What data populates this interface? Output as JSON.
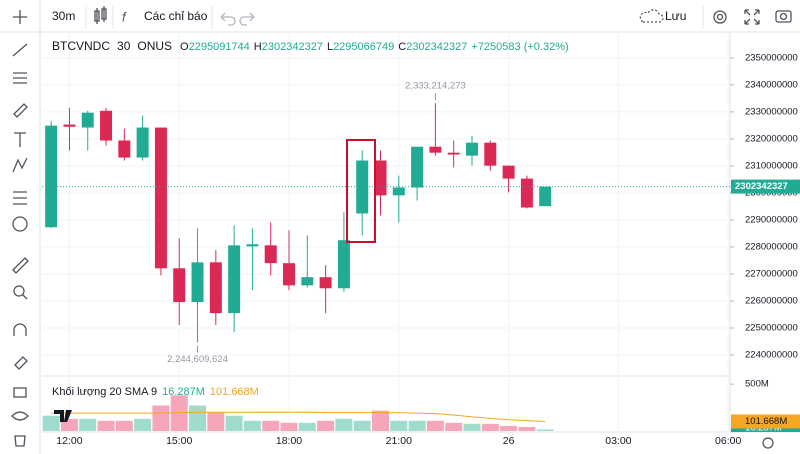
{
  "toolbar": {
    "interval": "30m",
    "indicators": "Các chỉ báo",
    "save": "Lưu"
  },
  "chart_data": [
    {
      "type": "candlestick",
      "symbol": "BTCVNDC",
      "interval": "30",
      "exchange": "ONUS",
      "legend": [
        {
          "key": "O",
          "value": 2295091744
        },
        {
          "key": "H",
          "value": 2302342327
        },
        {
          "key": "L",
          "value": 2295066749
        },
        {
          "key": "C",
          "value": 2302342327
        }
      ],
      "change": "+7250583 (+0.32%)",
      "xlim": [
        -0.5,
        37.1
      ],
      "xticks": [
        {
          "value": 1,
          "label": "12:00"
        },
        {
          "value": 7,
          "label": "15:00"
        },
        {
          "value": 13,
          "label": "18:00"
        },
        {
          "value": 19,
          "label": "21:00"
        },
        {
          "value": 25,
          "label": "26"
        },
        {
          "value": 31,
          "label": "03:00"
        },
        {
          "value": 37,
          "label": "06:00"
        }
      ],
      "ylim": [
        2232600000,
        2359200000
      ],
      "yticks": [
        2240000000,
        2250000000,
        2260000000,
        2270000000,
        2280000000,
        2290000000,
        2300000000,
        2310000000,
        2320000000,
        2330000000,
        2340000000,
        2350000000
      ],
      "grid": true,
      "up_color": "#22ab94",
      "down_color": "#dc2855",
      "open": [
        2287300000,
        2325300000,
        2324200000,
        2330400000,
        2319400000,
        2313100000,
        2324200000,
        2272100000,
        2259600000,
        2274300000,
        2255500000,
        2280200000,
        2280600000,
        2274000000,
        2265800000,
        2268800000,
        2264700000,
        2292400000,
        2312000000,
        2299100000,
        2302000000,
        2317100000,
        2314900000,
        2313800000,
        2318600000,
        2310100000,
        2305300000,
        2295091744
      ],
      "high": [
        2326700000,
        2331500000,
        2330400000,
        2331500000,
        2323800000,
        2328600000,
        2324200000,
        2283200000,
        2286900000,
        2278800000,
        2288000000,
        2286900000,
        2289100000,
        2286100000,
        2284300000,
        2273200000,
        2292800000,
        2315700000,
        2315700000,
        2306400000,
        2317100000,
        2333214273,
        2319400000,
        2321200000,
        2319400000,
        2310100000,
        2306400000,
        2302342327
      ],
      "low": [
        2286900000,
        2315700000,
        2315700000,
        2317500000,
        2312000000,
        2312000000,
        2269500000,
        2251100000,
        2244609624,
        2251100000,
        2248500000,
        2264000000,
        2269500000,
        2264000000,
        2265100000,
        2255500000,
        2263300000,
        2284300000,
        2291700000,
        2289100000,
        2297200000,
        2313800000,
        2309400000,
        2310100000,
        2308300000,
        2300200000,
        2294300000,
        2295066749
      ],
      "close": [
        2324900000,
        2324500000,
        2329700000,
        2319400000,
        2313100000,
        2324200000,
        2272100000,
        2259600000,
        2274300000,
        2255500000,
        2280600000,
        2281000000,
        2274000000,
        2265800000,
        2268800000,
        2264700000,
        2282500000,
        2312000000,
        2299100000,
        2302000000,
        2317100000,
        2314900000,
        2314200000,
        2318600000,
        2310100000,
        2305300000,
        2294600000,
        2302342327
      ],
      "annotations": [
        {
          "index": 21,
          "value": 2333214273,
          "label": "2,333,214,273"
        },
        {
          "index": 8,
          "value": 2244609624,
          "label": "2,244,609,624"
        }
      ]
    },
    {
      "type": "bar",
      "title": "Khối lượng 20 SMA 9",
      "ylim": [
        0,
        565
      ],
      "yticks": [
        {
          "value": 500,
          "label": "500M"
        }
      ],
      "series": [
        {
          "values": [
            163,
            130,
            130,
            109,
            109,
            130,
            272,
            380,
            272,
            196,
            163,
            109,
            109,
            87,
            87,
            109,
            130,
            109,
            217,
            109,
            109,
            109,
            87,
            76,
            76,
            54,
            43,
            16.287
          ],
          "last_label": "16.287M",
          "up_color": "#9fdccd",
          "down_color": "#f5a7b9",
          "label_color": "#22ab94"
        },
        {
          "type": "line",
          "values": [
            190,
            190,
            190,
            190,
            190,
            190,
            190,
            195,
            200,
            200,
            200,
            200,
            200,
            200,
            200,
            196,
            196,
            196,
            196,
            196,
            190,
            185,
            170,
            150,
            135,
            120,
            110,
            101.668
          ],
          "last_label": "101.668M",
          "color": "#f5a623"
        }
      ]
    }
  ]
}
